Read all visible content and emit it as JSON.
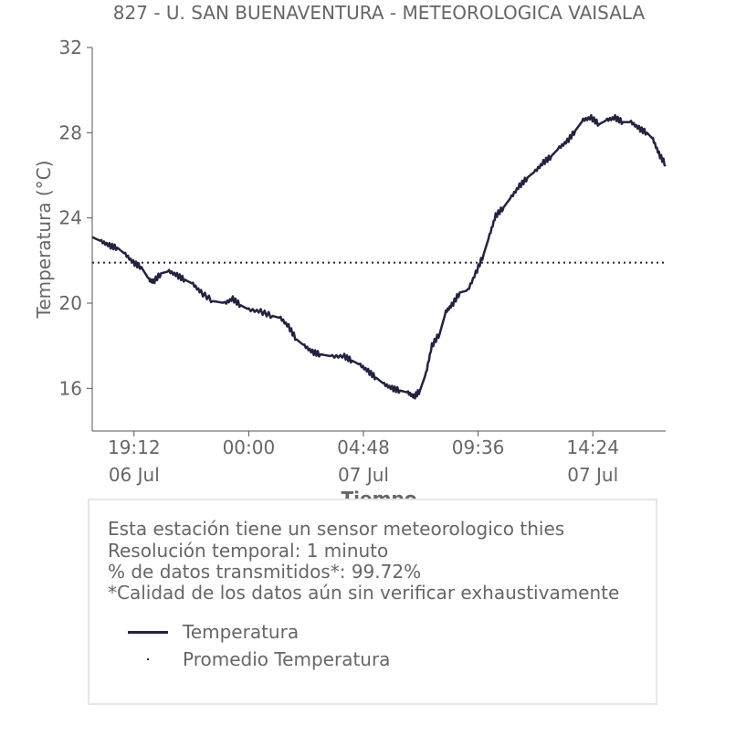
{
  "colors": {
    "series": "#23233f",
    "text": "#666666",
    "axis": "#555555",
    "box_border": "#e6e6e6"
  },
  "chart_data": {
    "type": "line",
    "title": "827 - U. SAN BUENAVENTURA - METEOROLOGICA VAISALA",
    "xlabel": "Tiempo",
    "ylabel": "Temperatura (°C)",
    "xlim": [
      "2024-07-06T17:27",
      "2024-07-07T17:27"
    ],
    "ylim": [
      14,
      32
    ],
    "yticks": [
      16,
      20,
      24,
      28,
      32
    ],
    "xticks": [
      {
        "t": "2024-07-06T19:12",
        "time": "19:12",
        "date": "06 Jul"
      },
      {
        "t": "2024-07-07T00:00",
        "time": "00:00",
        "date": ""
      },
      {
        "t": "2024-07-07T04:48",
        "time": "04:48",
        "date": "07 Jul"
      },
      {
        "t": "2024-07-07T09:36",
        "time": "09:36",
        "date": ""
      },
      {
        "t": "2024-07-07T14:24",
        "time": "14:24",
        "date": "07 Jul"
      }
    ],
    "grid": false,
    "series": [
      {
        "name": "Temperatura",
        "style": "solid",
        "points": [
          [
            "2024-07-06T17:27",
            23.1
          ],
          [
            "2024-07-06T17:50",
            22.9
          ],
          [
            "2024-07-06T18:10",
            22.7
          ],
          [
            "2024-07-06T18:30",
            22.6
          ],
          [
            "2024-07-06T18:50",
            22.3
          ],
          [
            "2024-07-06T19:10",
            21.9
          ],
          [
            "2024-07-06T19:30",
            21.7
          ],
          [
            "2024-07-06T19:50",
            21.1
          ],
          [
            "2024-07-06T20:00",
            21.0
          ],
          [
            "2024-07-06T20:20",
            21.4
          ],
          [
            "2024-07-06T20:40",
            21.5
          ],
          [
            "2024-07-06T21:00",
            21.3
          ],
          [
            "2024-07-06T21:20",
            21.1
          ],
          [
            "2024-07-06T21:40",
            20.9
          ],
          [
            "2024-07-06T22:00",
            20.5
          ],
          [
            "2024-07-06T22:30",
            20.1
          ],
          [
            "2024-07-06T23:00",
            20.0
          ],
          [
            "2024-07-06T23:20",
            20.2
          ],
          [
            "2024-07-06T23:40",
            19.9
          ],
          [
            "2024-07-07T00:00",
            19.7
          ],
          [
            "2024-07-07T00:30",
            19.6
          ],
          [
            "2024-07-07T01:00",
            19.4
          ],
          [
            "2024-07-07T01:20",
            19.3
          ],
          [
            "2024-07-07T01:40",
            18.9
          ],
          [
            "2024-07-07T02:00",
            18.3
          ],
          [
            "2024-07-07T02:20",
            18.0
          ],
          [
            "2024-07-07T02:40",
            17.7
          ],
          [
            "2024-07-07T03:00",
            17.6
          ],
          [
            "2024-07-07T03:30",
            17.5
          ],
          [
            "2024-07-07T04:00",
            17.5
          ],
          [
            "2024-07-07T04:20",
            17.3
          ],
          [
            "2024-07-07T04:40",
            17.1
          ],
          [
            "2024-07-07T05:00",
            16.8
          ],
          [
            "2024-07-07T05:20",
            16.5
          ],
          [
            "2024-07-07T05:40",
            16.2
          ],
          [
            "2024-07-07T06:00",
            16.0
          ],
          [
            "2024-07-07T06:20",
            15.9
          ],
          [
            "2024-07-07T06:40",
            15.8
          ],
          [
            "2024-07-07T06:55",
            15.6
          ],
          [
            "2024-07-07T07:10",
            15.9
          ],
          [
            "2024-07-07T07:25",
            16.7
          ],
          [
            "2024-07-07T07:40",
            18.0
          ],
          [
            "2024-07-07T08:00",
            18.6
          ],
          [
            "2024-07-07T08:15",
            19.6
          ],
          [
            "2024-07-07T08:30",
            19.9
          ],
          [
            "2024-07-07T08:50",
            20.5
          ],
          [
            "2024-07-07T09:10",
            20.6
          ],
          [
            "2024-07-07T09:30",
            21.4
          ],
          [
            "2024-07-07T09:50",
            22.3
          ],
          [
            "2024-07-07T10:05",
            23.2
          ],
          [
            "2024-07-07T10:20",
            24.1
          ],
          [
            "2024-07-07T10:40",
            24.5
          ],
          [
            "2024-07-07T11:00",
            25.0
          ],
          [
            "2024-07-07T11:20",
            25.5
          ],
          [
            "2024-07-07T11:40",
            25.9
          ],
          [
            "2024-07-07T12:00",
            26.2
          ],
          [
            "2024-07-07T12:20",
            26.6
          ],
          [
            "2024-07-07T12:40",
            26.9
          ],
          [
            "2024-07-07T13:00",
            27.3
          ],
          [
            "2024-07-07T13:20",
            27.6
          ],
          [
            "2024-07-07T13:40",
            28.1
          ],
          [
            "2024-07-07T14:00",
            28.6
          ],
          [
            "2024-07-07T14:20",
            28.7
          ],
          [
            "2024-07-07T14:40",
            28.4
          ],
          [
            "2024-07-07T15:00",
            28.6
          ],
          [
            "2024-07-07T15:20",
            28.7
          ],
          [
            "2024-07-07T15:40",
            28.5
          ],
          [
            "2024-07-07T16:00",
            28.5
          ],
          [
            "2024-07-07T16:20",
            28.2
          ],
          [
            "2024-07-07T16:40",
            28.0
          ],
          [
            "2024-07-07T16:55",
            27.7
          ],
          [
            "2024-07-07T17:10",
            27.0
          ],
          [
            "2024-07-07T17:27",
            26.5
          ]
        ]
      },
      {
        "name": "Promedio Temperatura",
        "style": "dotted",
        "value": 21.9
      }
    ]
  },
  "info_box": {
    "lines": [
      "Esta estación tiene un sensor meteorologico thies",
      "Resolución temporal: 1 minuto",
      "% de datos transmitidos*: 99.72%",
      "*Calidad de los datos aún sin verificar exhaustivamente"
    ],
    "legend": [
      {
        "label": "Temperatura",
        "marker": "line"
      },
      {
        "label": "Promedio Temperatura",
        "marker": "dot"
      }
    ]
  }
}
